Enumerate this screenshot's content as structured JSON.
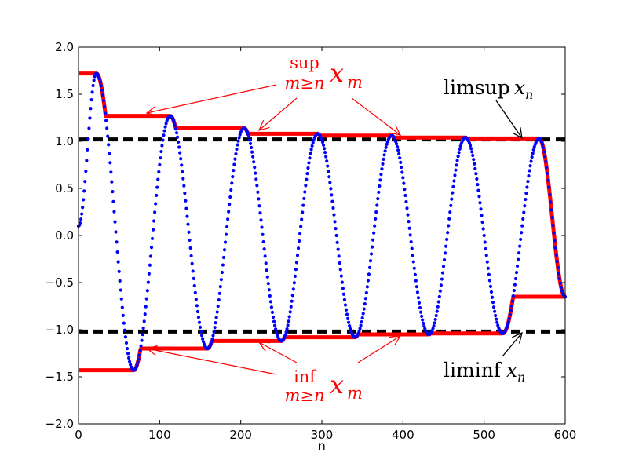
{
  "chart_data": {
    "type": "scatter",
    "xlabel": "n",
    "ylabel": "",
    "xlim": [
      0,
      600
    ],
    "ylim": [
      -2.0,
      2.0
    ],
    "xticks": [
      "0",
      "100",
      "200",
      "300",
      "400",
      "500",
      "600"
    ],
    "yticks": [
      "−2.0",
      "−1.5",
      "−1.0",
      "−0.5",
      "0.0",
      "0.5",
      "1.0",
      "1.5",
      "2.0"
    ],
    "grid": false,
    "series": [
      {
        "style": "dots",
        "color": "#0000ff",
        "extrema": [
          [
            0,
            0.1
          ],
          [
            22,
            1.72
          ],
          [
            68,
            -1.43
          ],
          [
            113,
            1.27
          ],
          [
            159,
            -1.2
          ],
          [
            204,
            1.14
          ],
          [
            250,
            -1.12
          ],
          [
            295,
            1.08
          ],
          [
            341,
            -1.08
          ],
          [
            386,
            1.06
          ],
          [
            432,
            -1.05
          ],
          [
            477,
            1.04
          ],
          [
            523,
            -1.04
          ],
          [
            568,
            1.03
          ],
          [
            600,
            -0.65
          ]
        ]
      },
      {
        "style": "running-sup",
        "color": "#ff0000"
      },
      {
        "style": "running-inf",
        "color": "#ff0000"
      }
    ],
    "limsup": 1.02,
    "liminf": -1.02,
    "annotations": {
      "sup_op": "sup",
      "sup_sub": "m≥n",
      "sup_var": "x",
      "sup_var_sub": "m",
      "inf_op": "inf",
      "inf_sub": "m≥n",
      "inf_var": "x",
      "inf_var_sub": "m",
      "limsup_op": "limsup",
      "limsup_var": "x",
      "limsup_var_sub": "n",
      "liminf_op": "liminf",
      "liminf_var": "x",
      "liminf_var_sub": "n"
    }
  }
}
